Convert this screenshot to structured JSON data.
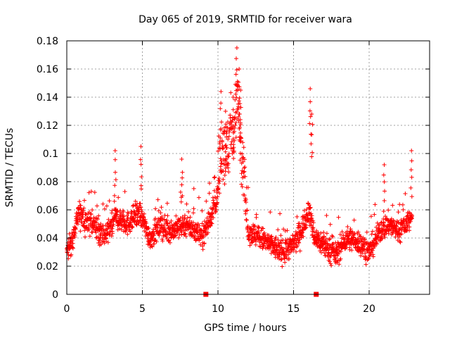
{
  "chart_data": {
    "type": "scatter",
    "title": "Day 065 of 2019, SRMTID for receiver wara",
    "xlabel": "GPS time / hours",
    "ylabel": "SRMTID / TECUs",
    "xlim": [
      0,
      24
    ],
    "ylim": [
      0,
      0.18
    ],
    "xticks": [
      0,
      5,
      10,
      15,
      20
    ],
    "yticks": [
      0,
      0.02,
      0.04,
      0.06,
      0.08,
      0.1,
      0.12,
      0.14,
      0.16,
      0.18
    ],
    "grid": true,
    "marker": "+",
    "color": "#ff0000",
    "markers_on_axis": [
      9.2,
      16.5
    ],
    "series": [
      {
        "name": "SRMTID",
        "profile": [
          [
            0.0,
            0.03
          ],
          [
            0.3,
            0.035
          ],
          [
            0.8,
            0.058
          ],
          [
            1.2,
            0.052
          ],
          [
            1.8,
            0.05
          ],
          [
            2.5,
            0.04
          ],
          [
            3.2,
            0.055
          ],
          [
            4.0,
            0.05
          ],
          [
            4.8,
            0.058
          ],
          [
            5.5,
            0.04
          ],
          [
            6.2,
            0.048
          ],
          [
            7.0,
            0.045
          ],
          [
            7.8,
            0.05
          ],
          [
            8.5,
            0.045
          ],
          [
            9.0,
            0.042
          ],
          [
            9.5,
            0.055
          ],
          [
            10.0,
            0.07
          ],
          [
            10.5,
            0.085
          ],
          [
            11.0,
            0.095
          ],
          [
            11.3,
            0.12
          ],
          [
            11.6,
            0.08
          ],
          [
            12.0,
            0.045
          ],
          [
            12.8,
            0.04
          ],
          [
            13.5,
            0.035
          ],
          [
            14.2,
            0.03
          ],
          [
            15.0,
            0.035
          ],
          [
            15.5,
            0.045
          ],
          [
            16.0,
            0.06
          ],
          [
            16.4,
            0.04
          ],
          [
            17.0,
            0.035
          ],
          [
            17.8,
            0.028
          ],
          [
            18.5,
            0.04
          ],
          [
            19.2,
            0.038
          ],
          [
            20.0,
            0.03
          ],
          [
            20.7,
            0.045
          ],
          [
            21.3,
            0.05
          ],
          [
            22.0,
            0.045
          ],
          [
            22.8,
            0.055
          ]
        ],
        "spikes": [
          [
            3.2,
            0.102
          ],
          [
            4.9,
            0.105
          ],
          [
            7.6,
            0.096
          ],
          [
            10.2,
            0.144
          ],
          [
            10.5,
            0.13
          ],
          [
            11.0,
            0.14
          ],
          [
            11.25,
            0.175
          ],
          [
            11.4,
            0.16
          ],
          [
            11.5,
            0.145
          ],
          [
            16.1,
            0.146
          ],
          [
            16.2,
            0.128
          ],
          [
            21.0,
            0.092
          ],
          [
            22.8,
            0.102
          ]
        ]
      }
    ]
  }
}
